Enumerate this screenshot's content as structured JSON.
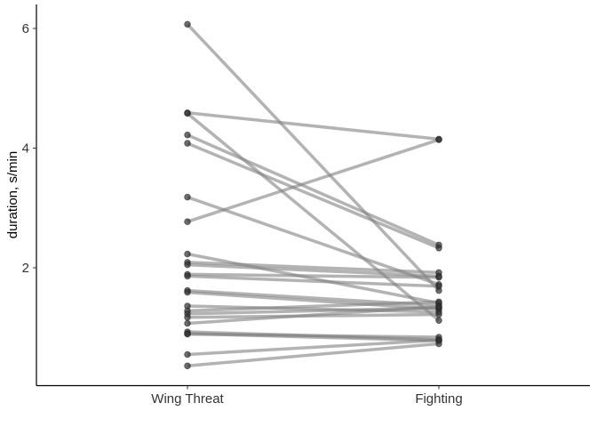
{
  "chart_data": {
    "type": "line",
    "title": "",
    "xlabel": "",
    "ylabel": "duration, s/min",
    "categories": [
      "Wing Threat",
      "Fighting"
    ],
    "ylim": [
      0,
      6.3
    ],
    "yticks": [
      2,
      4,
      6
    ],
    "ytick_labels": [
      "2",
      "4",
      "6"
    ],
    "grid": false,
    "legend": "none",
    "line_color": "#808080",
    "point_color": "#333333",
    "pairs": [
      [
        6.07,
        1.62
      ],
      [
        4.59,
        4.15
      ],
      [
        4.58,
        1.12
      ],
      [
        4.22,
        2.38
      ],
      [
        4.08,
        2.33
      ],
      [
        3.18,
        1.72
      ],
      [
        2.77,
        4.14
      ],
      [
        2.23,
        1.41
      ],
      [
        2.09,
        1.92
      ],
      [
        2.05,
        1.86
      ],
      [
        1.89,
        1.84
      ],
      [
        1.86,
        1.69
      ],
      [
        1.62,
        1.37
      ],
      [
        1.59,
        1.31
      ],
      [
        1.36,
        1.26
      ],
      [
        1.28,
        1.43
      ],
      [
        1.23,
        1.33
      ],
      [
        1.17,
        1.22
      ],
      [
        1.07,
        1.35
      ],
      [
        0.93,
        0.8
      ],
      [
        0.9,
        0.78
      ],
      [
        0.89,
        0.84
      ],
      [
        0.55,
        0.79
      ],
      [
        0.36,
        0.73
      ]
    ]
  }
}
